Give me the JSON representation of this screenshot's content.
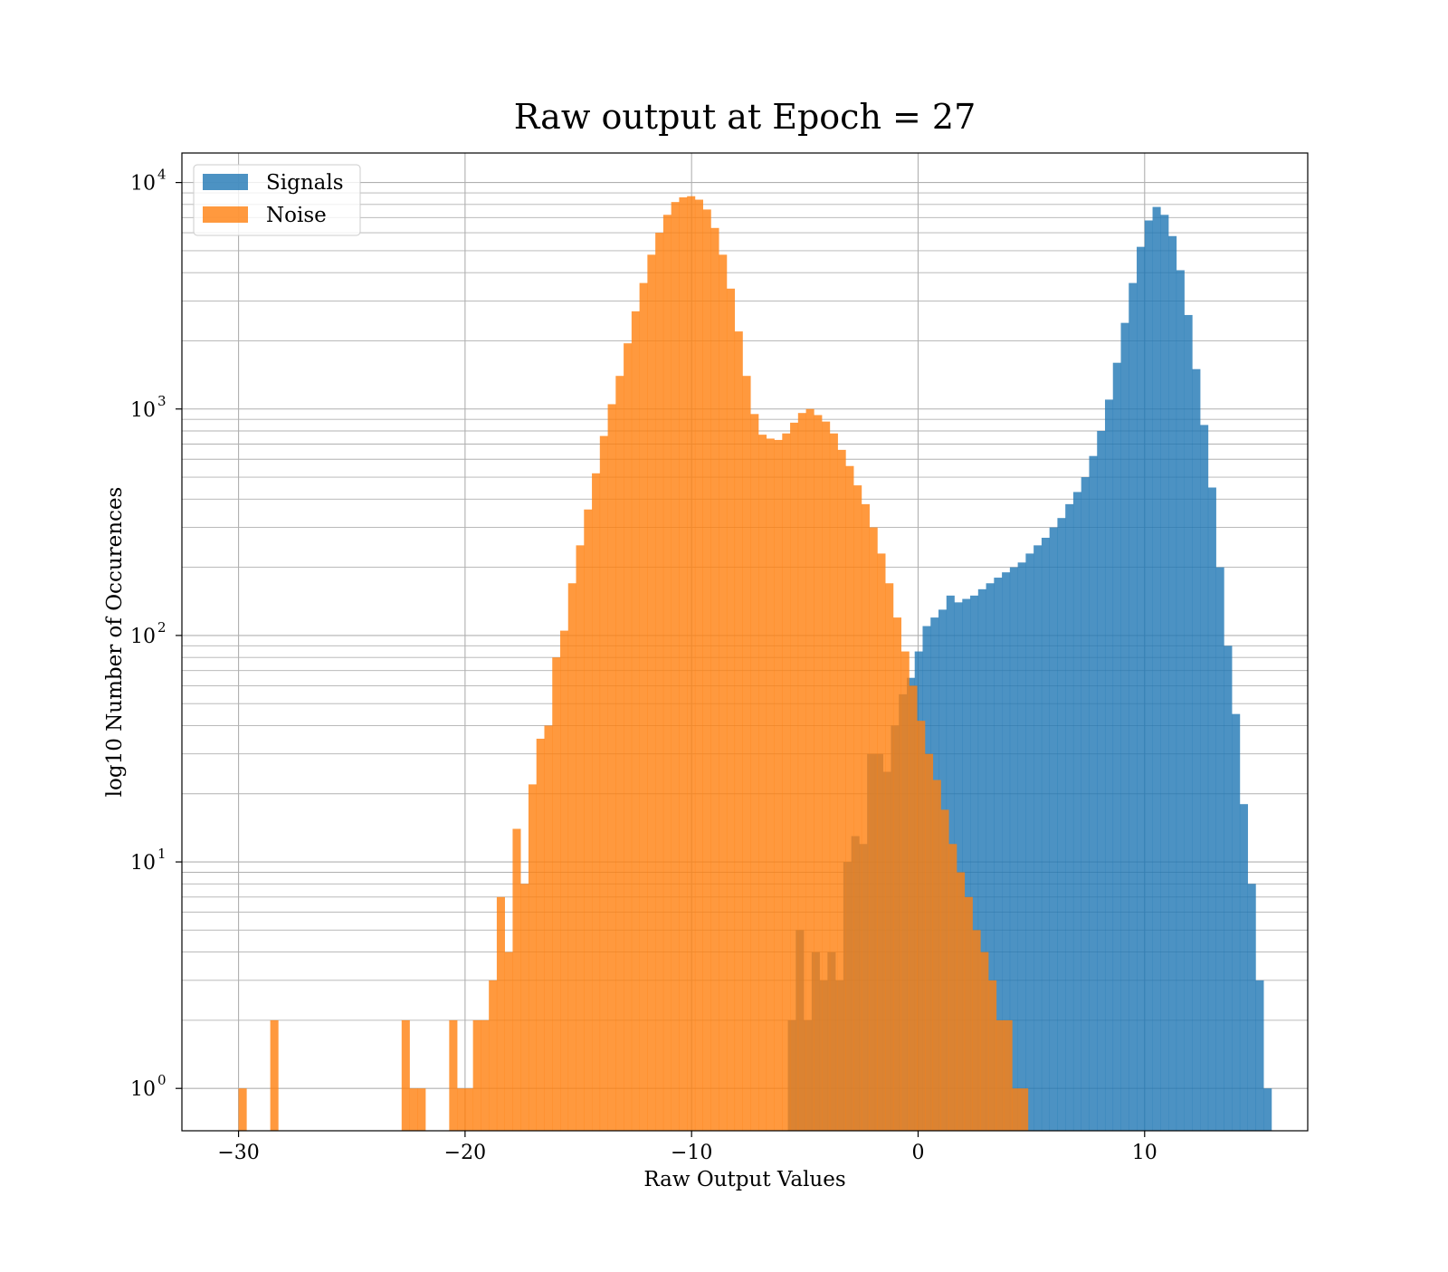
{
  "chart_data": {
    "type": "histogram",
    "title": "Raw output at Epoch = 27",
    "xlabel": "Raw Output Values",
    "ylabel": "log10 Number of Occurences",
    "xlim": [
      -32.5,
      17.2
    ],
    "ylim": [
      0.65,
      13500
    ],
    "yscale": "log",
    "grid": true,
    "legend": "upper-left",
    "xticks": [
      -30,
      -20,
      -10,
      0,
      10
    ],
    "xtick_labels": [
      "−30",
      "−20",
      "−10",
      "0",
      "10"
    ],
    "yticks": [
      1,
      10,
      100,
      1000,
      10000
    ],
    "ytick_labels": [
      {
        "base": "10",
        "exp": "0"
      },
      {
        "base": "10",
        "exp": "1"
      },
      {
        "base": "10",
        "exp": "2"
      },
      {
        "base": "10",
        "exp": "3"
      },
      {
        "base": "10",
        "exp": "4"
      }
    ],
    "colors": {
      "Signals": "#1f77b4",
      "Noise": "#ff7f0e"
    },
    "alpha": 0.8,
    "series": [
      {
        "name": "Signals",
        "bin_width": 0.35,
        "bins": [
          [
            -5.75,
            2
          ],
          [
            -5.4,
            5
          ],
          [
            -5.05,
            2
          ],
          [
            -4.7,
            4
          ],
          [
            -4.35,
            3
          ],
          [
            -4.0,
            4
          ],
          [
            -3.65,
            3
          ],
          [
            -3.3,
            10
          ],
          [
            -2.95,
            13
          ],
          [
            -2.6,
            12
          ],
          [
            -2.25,
            30
          ],
          [
            -1.9,
            30
          ],
          [
            -1.55,
            25
          ],
          [
            -1.2,
            40
          ],
          [
            -0.85,
            55
          ],
          [
            -0.5,
            65
          ],
          [
            -0.15,
            85
          ],
          [
            0.2,
            110
          ],
          [
            0.55,
            120
          ],
          [
            0.9,
            130
          ],
          [
            1.25,
            150
          ],
          [
            1.6,
            140
          ],
          [
            1.95,
            145
          ],
          [
            2.3,
            150
          ],
          [
            2.65,
            160
          ],
          [
            3.0,
            170
          ],
          [
            3.35,
            180
          ],
          [
            3.7,
            190
          ],
          [
            4.05,
            200
          ],
          [
            4.4,
            210
          ],
          [
            4.75,
            230
          ],
          [
            5.1,
            250
          ],
          [
            5.45,
            270
          ],
          [
            5.8,
            300
          ],
          [
            6.15,
            330
          ],
          [
            6.5,
            380
          ],
          [
            6.85,
            430
          ],
          [
            7.2,
            500
          ],
          [
            7.55,
            620
          ],
          [
            7.9,
            800
          ],
          [
            8.25,
            1100
          ],
          [
            8.6,
            1600
          ],
          [
            8.95,
            2400
          ],
          [
            9.3,
            3600
          ],
          [
            9.65,
            5200
          ],
          [
            10.0,
            6800
          ],
          [
            10.35,
            7800
          ],
          [
            10.7,
            7200
          ],
          [
            11.05,
            5800
          ],
          [
            11.4,
            4100
          ],
          [
            11.75,
            2600
          ],
          [
            12.1,
            1500
          ],
          [
            12.45,
            850
          ],
          [
            12.8,
            450
          ],
          [
            13.15,
            200
          ],
          [
            13.5,
            90
          ],
          [
            13.85,
            45
          ],
          [
            14.2,
            18
          ],
          [
            14.55,
            8
          ],
          [
            14.9,
            3
          ],
          [
            15.25,
            1
          ]
        ]
      },
      {
        "name": "Noise",
        "bin_width": 0.35,
        "bins": [
          [
            -30.0,
            1
          ],
          [
            -28.6,
            2
          ],
          [
            -22.8,
            2
          ],
          [
            -22.45,
            1
          ],
          [
            -22.1,
            1
          ],
          [
            -20.7,
            2
          ],
          [
            -20.35,
            1
          ],
          [
            -20.0,
            1
          ],
          [
            -19.65,
            2
          ],
          [
            -19.3,
            2
          ],
          [
            -18.95,
            3
          ],
          [
            -18.6,
            7
          ],
          [
            -18.25,
            4
          ],
          [
            -17.9,
            14
          ],
          [
            -17.55,
            8
          ],
          [
            -17.2,
            22
          ],
          [
            -16.85,
            35
          ],
          [
            -16.5,
            40
          ],
          [
            -16.15,
            80
          ],
          [
            -15.8,
            105
          ],
          [
            -15.45,
            170
          ],
          [
            -15.1,
            250
          ],
          [
            -14.75,
            360
          ],
          [
            -14.4,
            520
          ],
          [
            -14.05,
            760
          ],
          [
            -13.7,
            1050
          ],
          [
            -13.35,
            1400
          ],
          [
            -13.0,
            1950
          ],
          [
            -12.65,
            2700
          ],
          [
            -12.3,
            3600
          ],
          [
            -11.95,
            4800
          ],
          [
            -11.6,
            6000
          ],
          [
            -11.25,
            7200
          ],
          [
            -10.9,
            8200
          ],
          [
            -10.55,
            8600
          ],
          [
            -10.2,
            8700
          ],
          [
            -9.85,
            8400
          ],
          [
            -9.5,
            7600
          ],
          [
            -9.15,
            6300
          ],
          [
            -8.8,
            4800
          ],
          [
            -8.45,
            3400
          ],
          [
            -8.1,
            2200
          ],
          [
            -7.75,
            1400
          ],
          [
            -7.4,
            950
          ],
          [
            -7.05,
            770
          ],
          [
            -6.7,
            740
          ],
          [
            -6.35,
            730
          ],
          [
            -6.0,
            780
          ],
          [
            -5.65,
            870
          ],
          [
            -5.3,
            960
          ],
          [
            -4.95,
            1000
          ],
          [
            -4.6,
            940
          ],
          [
            -4.25,
            880
          ],
          [
            -3.9,
            780
          ],
          [
            -3.55,
            660
          ],
          [
            -3.2,
            560
          ],
          [
            -2.85,
            460
          ],
          [
            -2.5,
            380
          ],
          [
            -2.15,
            300
          ],
          [
            -1.8,
            230
          ],
          [
            -1.45,
            170
          ],
          [
            -1.1,
            120
          ],
          [
            -0.75,
            85
          ],
          [
            -0.4,
            60
          ],
          [
            -0.05,
            42
          ],
          [
            0.3,
            30
          ],
          [
            0.65,
            23
          ],
          [
            1.0,
            17
          ],
          [
            1.35,
            12
          ],
          [
            1.7,
            9
          ],
          [
            2.05,
            7
          ],
          [
            2.4,
            5
          ],
          [
            2.75,
            4
          ],
          [
            3.1,
            3
          ],
          [
            3.45,
            2
          ],
          [
            3.8,
            2
          ],
          [
            4.15,
            1
          ],
          [
            4.5,
            1
          ]
        ]
      }
    ]
  }
}
